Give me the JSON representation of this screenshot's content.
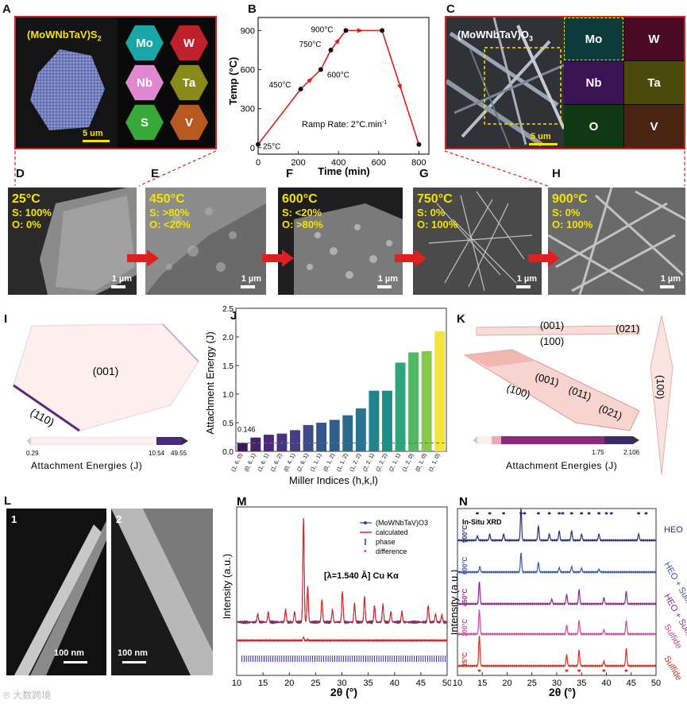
{
  "panels": {
    "A": {
      "label": "A",
      "title": "(MoWNbTaV)S",
      "title_sub": "2",
      "scale": "5 um",
      "elements": [
        "Mo",
        "W",
        "Nb",
        "Ta",
        "S",
        "V"
      ],
      "colors": [
        "#1aa6a6",
        "#c0202a",
        "#e089d0",
        "#8a8a1a",
        "#38a838",
        "#b85a20"
      ]
    },
    "B": {
      "label": "B",
      "ylabel": "Temp (°C)",
      "xlabel": "Time (min)",
      "note": "Ramp Rate: 2°C.min",
      "note_sup": "-1",
      "points": [
        {
          "t": 0,
          "T": 25,
          "lbl": "25°C"
        },
        {
          "t": 212,
          "T": 450,
          "lbl": "450°C"
        },
        {
          "t": 312,
          "T": 600,
          "lbl": "600°C"
        },
        {
          "t": 362,
          "T": 750,
          "lbl": "750°C"
        },
        {
          "t": 437,
          "T": 900,
          "lbl": "900°C"
        },
        {
          "t": 617,
          "T": 900,
          "lbl": ""
        },
        {
          "t": 800,
          "T": 25,
          "lbl": ""
        }
      ],
      "xticks": [
        "0",
        "200",
        "400",
        "600",
        "800"
      ],
      "yticks": [
        "0",
        "300",
        "600",
        "900"
      ]
    },
    "C": {
      "label": "C",
      "title": "(MoWNbTaV)O",
      "title_sub": "3",
      "scale": "5 um",
      "elements": [
        "Mo",
        "W",
        "Nb",
        "Ta",
        "O",
        "V"
      ],
      "colors": [
        "#1aa6a6",
        "#c0205a",
        "#9a3ab8",
        "#c8c820",
        "#38a838",
        "#c87040"
      ]
    },
    "D": {
      "label": "D",
      "temp": "25°C",
      "s": "S: 100%",
      "o": "O: 0%",
      "scale": "1 µm"
    },
    "E": {
      "label": "E",
      "temp": "450°C",
      "s": "S: >80%",
      "o": "O: <20%",
      "scale": "1 µm"
    },
    "F": {
      "label": "F",
      "temp": "600°C",
      "s": "S: <20%",
      "o": "O: >80%",
      "scale": "1 µm"
    },
    "G": {
      "label": "G",
      "temp": "750°C",
      "s": "S: 0%",
      "o": "O: 100%",
      "scale": "1 µm"
    },
    "H": {
      "label": "H",
      "temp": "900°C",
      "s": "S: 0%",
      "o": "O: 100%",
      "scale": "1 µm"
    },
    "I": {
      "label": "I",
      "face_main": "(001)",
      "face_edge": "(110)",
      "bar_min": "0.29",
      "bar_mid": "10.54",
      "bar_max": "49.55",
      "bar_label": "Attachment Energies (J)"
    },
    "K": {
      "label": "K",
      "faces": [
        "(001)",
        "(021)",
        "(100)",
        "(001)",
        "(011)",
        "(100)",
        "(021)",
        "(100)"
      ],
      "bar_mid": "1.75",
      "bar_max": "2.106",
      "bar_label": "Attachment Energies (J)"
    },
    "L": {
      "label": "L",
      "img1": "1",
      "img2": "2",
      "scale1": "100 nm",
      "scale2": "100 nm"
    },
    "M": {
      "label": "M",
      "legend": [
        "(MoWNbTaV)O3",
        "calculated",
        "phase",
        "difference"
      ],
      "note": "[λ=1.540 Å] Cu Kα",
      "ylabel": "Intensity (a.u.)",
      "xlabel": "2θ (°)"
    },
    "N": {
      "label": "N",
      "title": "In-Situ XRD",
      "ylabel": "Intensity (a.u.)",
      "xlabel": "2θ (°)",
      "temps": [
        "900°C",
        "600°C",
        "450°C",
        "300°C",
        "25°C"
      ],
      "names": [
        "HEO",
        "HEO + Sulfide",
        "HEO + Sulfide",
        "Sulfide",
        "Sulfide"
      ],
      "colors": [
        "#2a2f7a",
        "#3a5aa8",
        "#8a2a8a",
        "#d0489a",
        "#d83020"
      ]
    }
  },
  "chart_data": [
    {
      "type": "bar",
      "title": "J",
      "xlabel": "Miller Indices (h,k,l)",
      "ylabel": "Attachment Energy (J)",
      "ylim": [
        0,
        2.5
      ],
      "threshold": 0.146,
      "threshold_label": "0.146",
      "categories": [
        "(1, 6, 0)",
        "(0, 6, 1)",
        "(1, 6, 1)",
        "(1, 6, 2)",
        "(0, 4, 1)",
        "(2, 6, 1)",
        "(1, 1, 1)",
        "(0, 1, 2)",
        "(1, 1, 2)",
        "(1, 2, 2)",
        "(2, 2, 1)",
        "(2, 2, 2)",
        "(2, 1, 1)",
        "(1, 2, 0)",
        "(0, 1, 0)",
        "(1, 1, 0)"
      ],
      "values": [
        0.146,
        0.24,
        0.29,
        0.31,
        0.37,
        0.46,
        0.5,
        0.55,
        0.63,
        0.75,
        1.06,
        1.06,
        1.55,
        1.73,
        1.75,
        2.1
      ],
      "yticks": [
        "0.0",
        "0.5",
        "1.0",
        "1.5",
        "2.0",
        "2.5"
      ]
    },
    {
      "type": "line",
      "title": "M",
      "xlabel": "2θ (°)",
      "ylabel": "Intensity (a.u.)",
      "xlim": [
        10,
        50
      ],
      "xticks": [
        "10",
        "15",
        "20",
        "25",
        "30",
        "35",
        "40",
        "45",
        "50"
      ],
      "peaks": [
        [
          14.0,
          0.08
        ],
        [
          16.0,
          0.1
        ],
        [
          19.3,
          0.12
        ],
        [
          21.0,
          0.1
        ],
        [
          22.7,
          1.0
        ],
        [
          23.5,
          0.35
        ],
        [
          26.2,
          0.22
        ],
        [
          28.2,
          0.12
        ],
        [
          30.1,
          0.3
        ],
        [
          32.4,
          0.18
        ],
        [
          34.3,
          0.25
        ],
        [
          36.2,
          0.16
        ],
        [
          37.8,
          0.17
        ],
        [
          39.3,
          0.1
        ],
        [
          41.4,
          0.1
        ],
        [
          46.4,
          0.16
        ],
        [
          47.8,
          0.08
        ],
        [
          49.0,
          0.07
        ]
      ]
    },
    {
      "type": "line",
      "title": "N",
      "xlabel": "2θ (°)",
      "ylabel": "Intensity (a.u.)",
      "xlim": [
        10,
        50
      ],
      "xticks": [
        "10",
        "15",
        "20",
        "25",
        "30",
        "35",
        "40",
        "45",
        "50"
      ],
      "series": [
        {
          "name": "900°C",
          "peaks": [
            [
              14.0,
              0.15
            ],
            [
              16.5,
              0.2
            ],
            [
              19.3,
              0.2
            ],
            [
              22.8,
              1.0
            ],
            [
              26.3,
              0.45
            ],
            [
              28.5,
              0.2
            ],
            [
              30.5,
              0.3
            ],
            [
              33.0,
              0.3
            ],
            [
              35.0,
              0.2
            ],
            [
              38.5,
              0.2
            ],
            [
              46.5,
              0.2
            ]
          ]
        },
        {
          "name": "600°C",
          "peaks": [
            [
              14.5,
              0.2
            ],
            [
              22.8,
              0.7
            ],
            [
              26.3,
              0.35
            ],
            [
              30.5,
              0.15
            ],
            [
              33.0,
              0.2
            ],
            [
              35.0,
              0.15
            ],
            [
              38.5,
              0.1
            ]
          ]
        },
        {
          "name": "450°C",
          "peaks": [
            [
              14.4,
              0.7
            ],
            [
              29.0,
              0.15
            ],
            [
              32.0,
              0.3
            ],
            [
              34.5,
              0.45
            ],
            [
              39.5,
              0.2
            ],
            [
              44.0,
              0.4
            ]
          ]
        },
        {
          "name": "300°C",
          "peaks": [
            [
              14.4,
              0.8
            ],
            [
              32.0,
              0.3
            ],
            [
              34.5,
              0.45
            ],
            [
              39.5,
              0.15
            ],
            [
              44.0,
              0.45
            ]
          ]
        },
        {
          "name": "25°C",
          "peaks": [
            [
              14.4,
              0.95
            ],
            [
              32.0,
              0.35
            ],
            [
              34.5,
              0.5
            ],
            [
              39.5,
              0.15
            ],
            [
              44.0,
              0.55
            ]
          ]
        }
      ]
    }
  ],
  "watermark": "大数跨境"
}
